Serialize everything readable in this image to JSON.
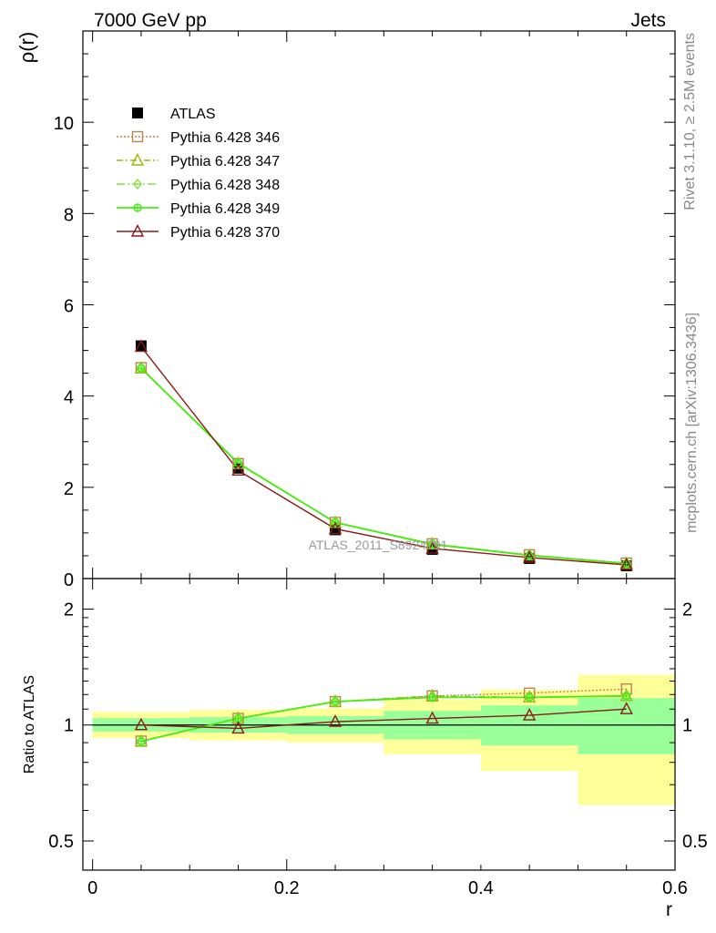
{
  "header": {
    "left": "7000 GeV pp",
    "right": "Jets",
    "side_top": "Rivet 3.1.10, ≥ 2.5M events",
    "side_bottom": "mcplots.cern.ch [arXiv:1306.3436]",
    "watermark": "ATLAS_2011_S8924791"
  },
  "chart_data": [
    {
      "type": "line",
      "ylabel": "ρ(r)",
      "xlim": [
        -0.01,
        0.6
      ],
      "ylim": [
        0,
        12
      ],
      "y_ticks": [
        0,
        2,
        4,
        6,
        8,
        10
      ],
      "y_tick_labels": [
        "0",
        "2",
        "4",
        "6",
        "8",
        "10"
      ],
      "x": [
        0.05,
        0.15,
        0.25,
        0.35,
        0.45,
        0.55
      ],
      "data": {
        "name": "ATLAS",
        "values": [
          5.1,
          2.42,
          1.07,
          0.64,
          0.44,
          0.28
        ],
        "errors": [
          0.08,
          0.05,
          0.03,
          0.03,
          0.02,
          0.02
        ]
      },
      "series": [
        {
          "name": "Pythia 6.428 346",
          "color": "#b8864a",
          "marker": "square",
          "dash": "2,2",
          "values": [
            4.62,
            2.52,
            1.23,
            0.76,
            0.52,
            0.34
          ]
        },
        {
          "name": "Pythia 6.428 347",
          "color": "#99bb11",
          "marker": "triangle",
          "dash": "7,3,2,3",
          "values": [
            4.61,
            2.52,
            1.23,
            0.76,
            0.51,
            0.33
          ]
        },
        {
          "name": "Pythia 6.428 348",
          "color": "#88dd44",
          "marker": "diamond",
          "dash": "9,3,2,3",
          "values": [
            4.61,
            2.52,
            1.23,
            0.75,
            0.51,
            0.33
          ]
        },
        {
          "name": "Pythia 6.428 349",
          "color": "#44ee11",
          "marker": "circle-cross",
          "dash": "",
          "values": [
            4.61,
            2.53,
            1.23,
            0.75,
            0.51,
            0.33
          ]
        },
        {
          "name": "Pythia 6.428 370",
          "color": "#8b1a1a",
          "marker": "triangle",
          "dash": "",
          "values": [
            5.08,
            2.37,
            1.09,
            0.66,
            0.46,
            0.3
          ]
        }
      ]
    },
    {
      "type": "line",
      "xlabel": "r",
      "ylabel": "Ratio to ATLAS",
      "xlim": [
        -0.01,
        0.6
      ],
      "ylim": [
        0.42,
        2.4
      ],
      "scale": "log",
      "x_ticks": [
        0,
        0.2,
        0.4,
        0.6
      ],
      "x_tick_labels": [
        "0",
        "0.2",
        "0.4",
        "0.6"
      ],
      "y_ticks": [
        0.5,
        1,
        2
      ],
      "y_tick_labels": [
        "0.5",
        "1",
        "2"
      ],
      "x": [
        0.05,
        0.15,
        0.25,
        0.35,
        0.45,
        0.55
      ],
      "bands": [
        {
          "x0": 0.0,
          "x1": 0.1,
          "yellow": [
            0.925,
            1.082
          ],
          "green": [
            0.962,
            1.042
          ]
        },
        {
          "x0": 0.1,
          "x1": 0.2,
          "yellow": [
            0.912,
            1.095
          ],
          "green": [
            0.955,
            1.048
          ]
        },
        {
          "x0": 0.2,
          "x1": 0.3,
          "yellow": [
            0.9,
            1.105
          ],
          "green": [
            0.948,
            1.055
          ]
        },
        {
          "x0": 0.3,
          "x1": 0.4,
          "yellow": [
            0.84,
            1.165
          ],
          "green": [
            0.918,
            1.088
          ]
        },
        {
          "x0": 0.4,
          "x1": 0.5,
          "yellow": [
            0.76,
            1.235
          ],
          "green": [
            0.885,
            1.125
          ]
        },
        {
          "x0": 0.5,
          "x1": 0.6,
          "yellow": [
            0.62,
            1.35
          ],
          "green": [
            0.84,
            1.175
          ]
        }
      ],
      "series": [
        {
          "name": "Pythia 6.428 346",
          "values": [
            0.908,
            1.04,
            1.15,
            1.19,
            1.21,
            1.24
          ]
        },
        {
          "name": "Pythia 6.428 347",
          "values": [
            0.907,
            1.04,
            1.15,
            1.19,
            1.18,
            1.19
          ]
        },
        {
          "name": "Pythia 6.428 348",
          "values": [
            0.907,
            1.04,
            1.15,
            1.18,
            1.18,
            1.19
          ]
        },
        {
          "name": "Pythia 6.428 349",
          "values": [
            0.907,
            1.04,
            1.15,
            1.18,
            1.18,
            1.19
          ]
        },
        {
          "name": "Pythia 6.428 370",
          "values": [
            1.0,
            0.98,
            1.02,
            1.04,
            1.06,
            1.1
          ]
        }
      ]
    }
  ]
}
